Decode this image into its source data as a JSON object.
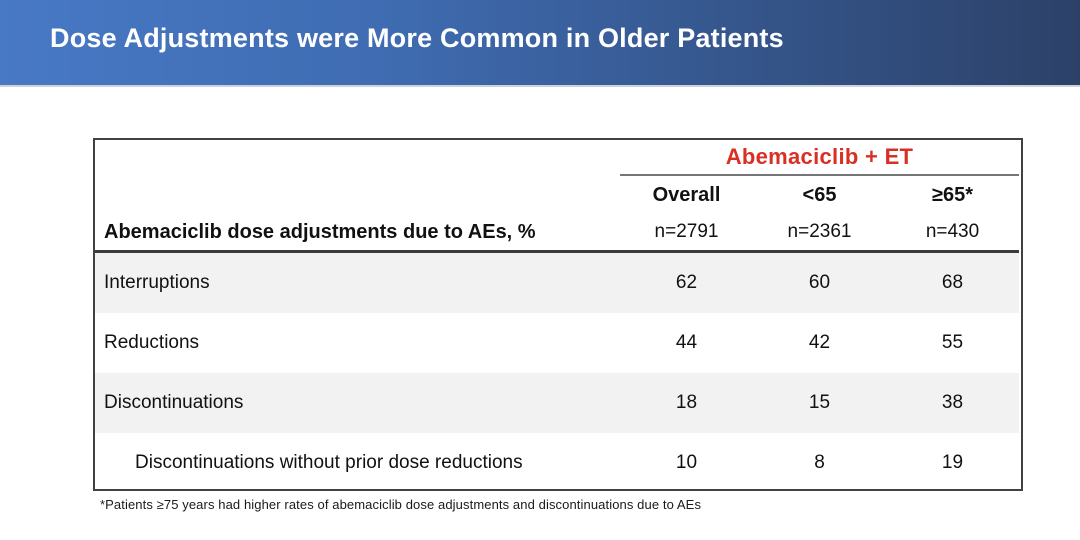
{
  "banner": {
    "title": "Dose Adjustments were More Common in Older Patients",
    "gradient_left": "#4879c5",
    "gradient_right": "#2c4168",
    "title_color": "#ffffff"
  },
  "table": {
    "group_header": "Abemaciclib + ET",
    "group_header_color": "#d93025",
    "row_header_label": "Abemaciclib dose adjustments due to AEs, %",
    "columns": [
      {
        "label": "Overall",
        "n": "n=2791"
      },
      {
        "label": "<65",
        "n": "n=2361"
      },
      {
        "label": "≥65*",
        "n": "n=430"
      }
    ],
    "rows": [
      {
        "label": "Interruptions",
        "values": [
          "62",
          "60",
          "68"
        ]
      },
      {
        "label": "Reductions",
        "values": [
          "44",
          "42",
          "55"
        ]
      },
      {
        "label": "Discontinuations",
        "values": [
          "18",
          "15",
          "38"
        ]
      },
      {
        "label": "Discontinuations without prior dose reductions",
        "values": [
          "10",
          "8",
          "19"
        ]
      }
    ],
    "stripe_color": "#f2f2f2"
  },
  "footnote": "*Patients ≥75 years had higher rates of abemaciclib dose adjustments and discontinuations due to AEs"
}
